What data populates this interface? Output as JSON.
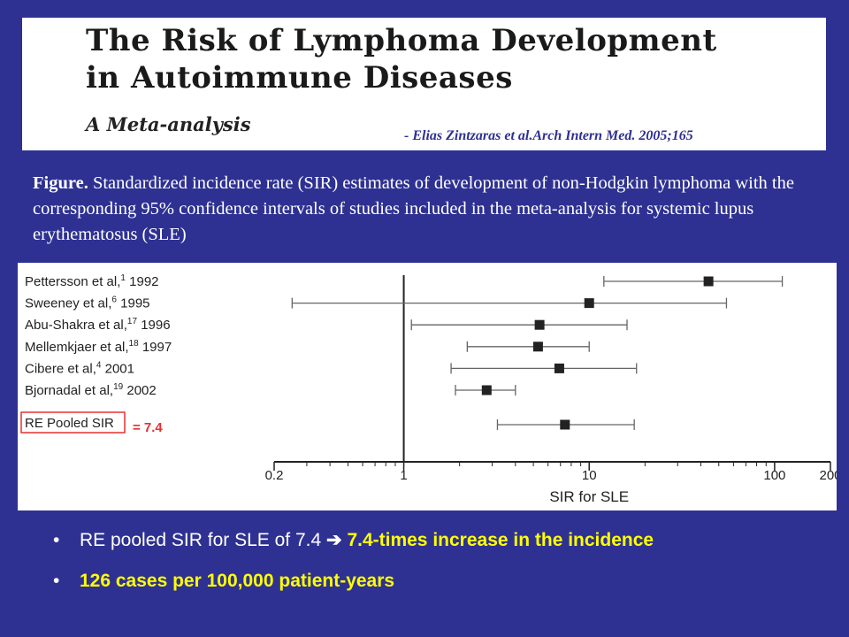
{
  "header": {
    "title_line1": "The Risk of Lymphoma Development",
    "title_line2": "in Autoimmune Diseases",
    "subtitle": "A Meta-analysis",
    "citation": "- Elias Zintzaras et al.Arch Intern Med. 2005;165"
  },
  "caption": {
    "label": "Figure.",
    "text": " Standardized incidence rate (SIR) estimates of development of non-Hodgkin lymphoma with the corresponding 95% confidence intervals of studies included in the meta-analysis for systemic lupus erythematosus (SLE)"
  },
  "colors": {
    "background": "#2e3192",
    "highlight": "#ffff00",
    "annotation": "#e53030"
  },
  "chart_data": {
    "type": "scatter",
    "subtype": "forest-plot",
    "xlabel": "SIR for SLE",
    "xscale": "log",
    "xlim": [
      0.2,
      200
    ],
    "xticks": [
      "0.2",
      "1",
      "10",
      "100",
      "200"
    ],
    "grid": false,
    "studies": [
      {
        "label": "Pettersson et al,",
        "ref": "1",
        "year": "1992",
        "sir": 44,
        "ci": [
          12,
          110
        ]
      },
      {
        "label": "Sweeney et al,",
        "ref": "6",
        "year": "1995",
        "sir": 10,
        "ci": [
          0.25,
          55
        ]
      },
      {
        "label": "Abu-Shakra et al,",
        "ref": "17",
        "year": "1996",
        "sir": 5.4,
        "ci": [
          1.1,
          16
        ]
      },
      {
        "label": "Mellemkjaer et al,",
        "ref": "18",
        "year": "1997",
        "sir": 5.3,
        "ci": [
          2.2,
          10
        ]
      },
      {
        "label": "Cibere et al,",
        "ref": "4",
        "year": "2001",
        "sir": 6.9,
        "ci": [
          1.8,
          18
        ]
      },
      {
        "label": "Bjornadal et al,",
        "ref": "19",
        "year": "2002",
        "sir": 2.8,
        "ci": [
          1.9,
          4.0
        ]
      }
    ],
    "pooled": {
      "label": "RE Pooled SIR",
      "sir": 7.4,
      "ci": [
        3.2,
        17.5
      ],
      "annotation": "= 7.4"
    }
  },
  "bullets": [
    {
      "white": "RE pooled SIR for SLE of 7.4 ",
      "arrow": "➔",
      "yellow": " 7.4-times increase in the incidence"
    },
    {
      "white": "",
      "arrow": "",
      "yellow": "126 cases per 100,000 patient-years"
    }
  ]
}
